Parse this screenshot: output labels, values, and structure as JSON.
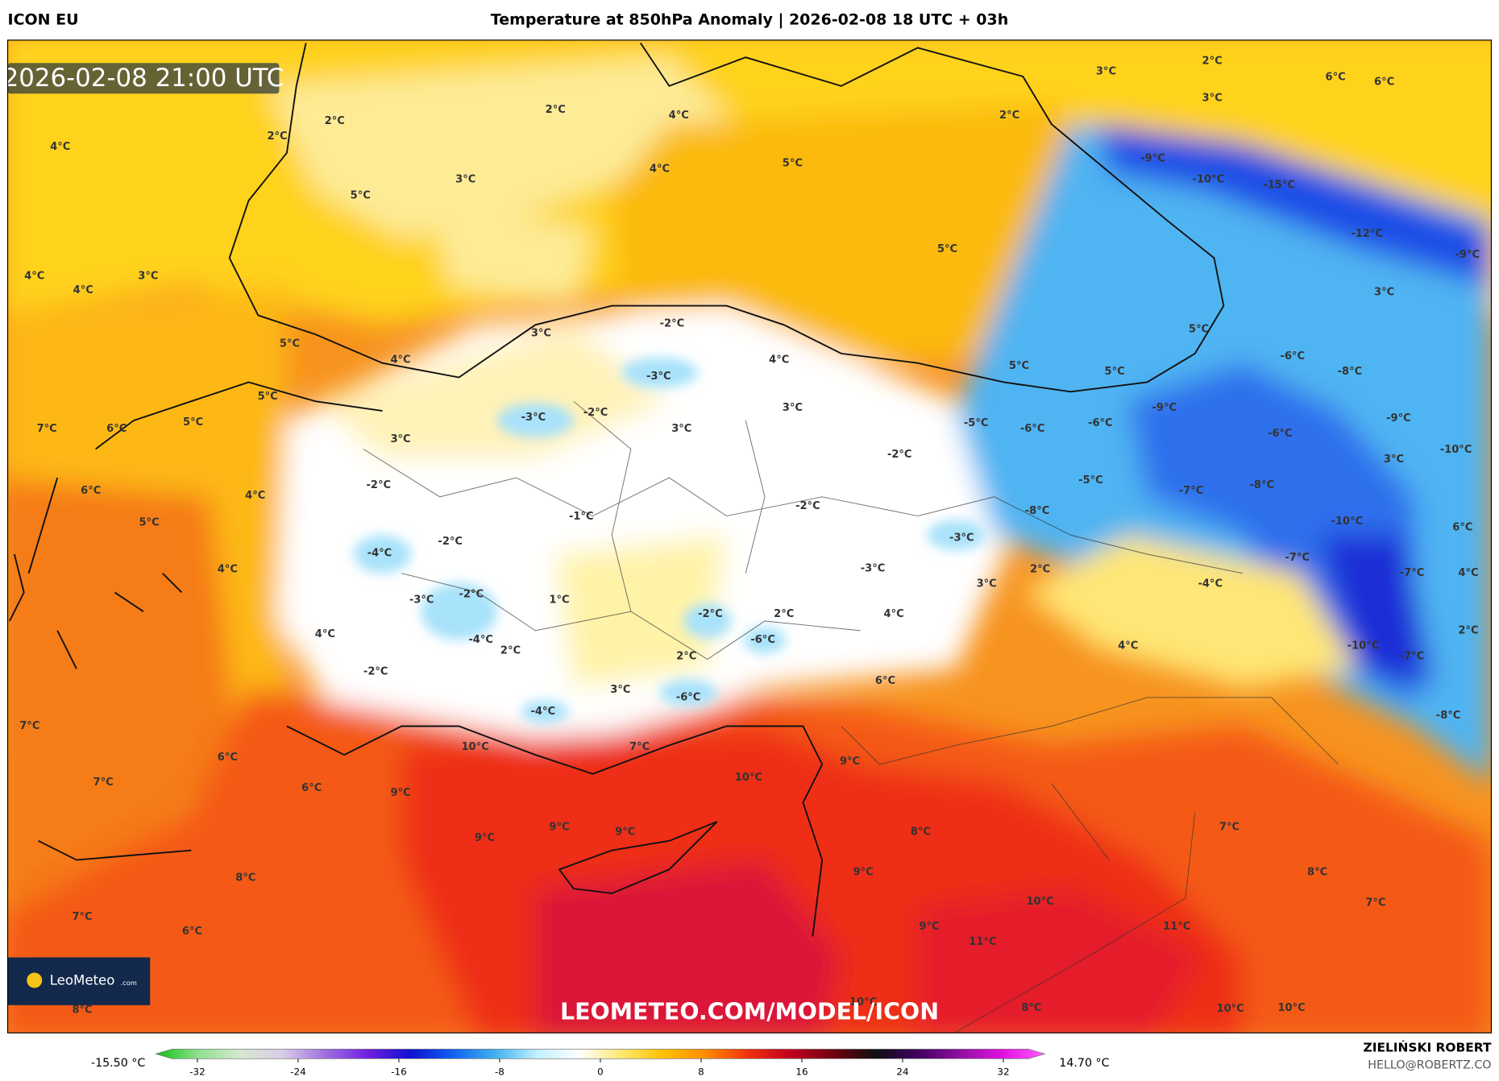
{
  "header": {
    "model": "ICON EU",
    "title": "Temperature at 850hPa Anomaly | 2026-02-08 18 UTC + 03h"
  },
  "map": {
    "timestamp": "2026-02-08 21:00 UTC",
    "watermark": "LEOMETEO.COM/MODEL/ICON",
    "logo": "LeoMeteo",
    "logo_suffix": ".com",
    "labels": [
      "2°C",
      "2°C",
      "2°C",
      "2°C",
      "2°C",
      "4°C",
      "4°C",
      "4°C",
      "4°C",
      "4°C",
      "4°C",
      "4°C",
      "4°C",
      "4°C",
      "4°C",
      "4°C",
      "4°C",
      "4°C",
      "3°C",
      "3°C",
      "3°C",
      "3°C",
      "3°C",
      "3°C",
      "3°C",
      "3°C",
      "3°C",
      "3°C",
      "3°C",
      "3°C",
      "5°C",
      "5°C",
      "5°C",
      "5°C",
      "5°C",
      "5°C",
      "5°C",
      "5°C",
      "5°C",
      "5°C",
      "6°C",
      "6°C",
      "6°C",
      "6°C",
      "6°C",
      "6°C",
      "6°C",
      "6°C",
      "6°C",
      "7°C",
      "7°C",
      "7°C",
      "7°C",
      "7°C",
      "7°C",
      "7°C",
      "-2°C",
      "-2°C",
      "-2°C",
      "-2°C",
      "-2°C",
      "-2°C",
      "-2°C",
      "-2°C",
      "-2°C",
      "-3°C",
      "-3°C",
      "-3°C",
      "-3°C",
      "-3°C",
      "-1°C",
      "1°C",
      "2°C",
      "2°C",
      "2°C",
      "2°C",
      "2°C",
      "-4°C",
      "-4°C",
      "-4°C",
      "-4°C",
      "-5°C",
      "-5°C",
      "-6°C",
      "-6°C",
      "-6°C",
      "-6°C",
      "-6°C",
      "-6°C",
      "-7°C",
      "-7°C",
      "-7°C",
      "-7°C",
      "-8°C",
      "-8°C",
      "-8°C",
      "-8°C",
      "-9°C",
      "-9°C",
      "-9°C",
      "-9°C",
      "-10°C",
      "-10°C",
      "-10°C",
      "-10°C",
      "-12°C",
      "-15°C",
      "8°C",
      "8°C",
      "8°C",
      "8°C",
      "8°C",
      "9°C",
      "9°C",
      "9°C",
      "9°C",
      "9°C",
      "9°C",
      "9°C",
      "10°C",
      "10°C",
      "10°C",
      "10°C",
      "10°C",
      "10°C",
      "11°C",
      "11°C"
    ]
  },
  "colorbar": {
    "min_label": "-15.50 °C",
    "max_label": "14.70 °C",
    "lim": [
      -35.3,
      35.3
    ],
    "ticks": [
      -32,
      -24,
      -16,
      -8,
      0,
      8,
      16,
      24,
      32
    ],
    "colors": [
      "#10c010",
      "#8fe08f",
      "#d8e8d0",
      "#d8cce8",
      "#a070e0",
      "#7020e0",
      "#1010d0",
      "#1060f0",
      "#40b0f0",
      "#c0f0ff",
      "#ffffff",
      "#ffe870",
      "#ffc000",
      "#ff8a00",
      "#f03010",
      "#c00020",
      "#700010",
      "#101010",
      "#400060",
      "#9010a0",
      "#e010e0",
      "#ff60ff"
    ]
  },
  "footer": {
    "author": "ZIELIŃSKI ROBERT",
    "email": "HELLO@ROBERTZ.CO"
  }
}
